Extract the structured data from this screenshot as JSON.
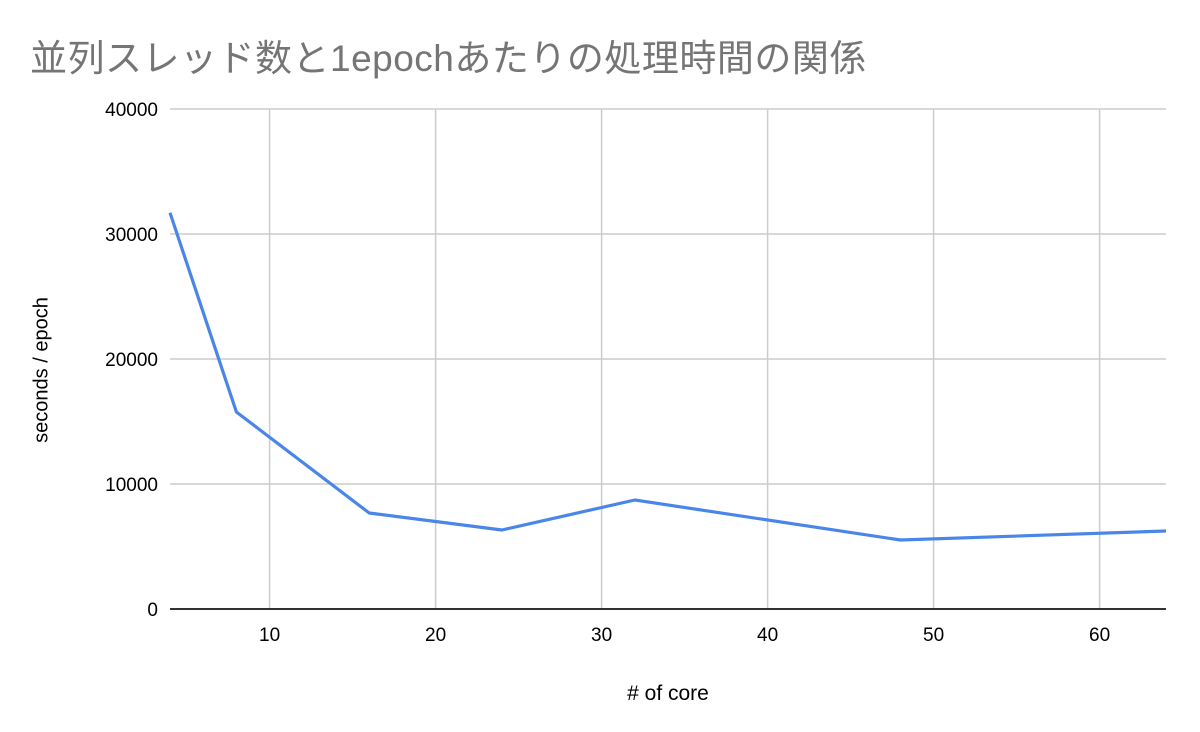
{
  "chart_data": {
    "type": "line",
    "title": "並列スレッド数と1epochあたりの処理時間の関係",
    "xlabel": "# of core",
    "ylabel": "seconds / epoch",
    "x": [
      4,
      8,
      16,
      24,
      32,
      48,
      64
    ],
    "series": [
      {
        "name": "seconds / epoch",
        "color": "#4a86e8",
        "values": [
          31700,
          15760,
          7680,
          6320,
          8720,
          5520,
          6240
        ]
      }
    ],
    "xlim": [
      4,
      64
    ],
    "ylim": [
      0,
      40000
    ],
    "xticks": [
      10,
      20,
      30,
      40,
      50,
      60
    ],
    "yticks": [
      0,
      10000,
      20000,
      30000,
      40000
    ],
    "grid": true,
    "legend": "none"
  }
}
